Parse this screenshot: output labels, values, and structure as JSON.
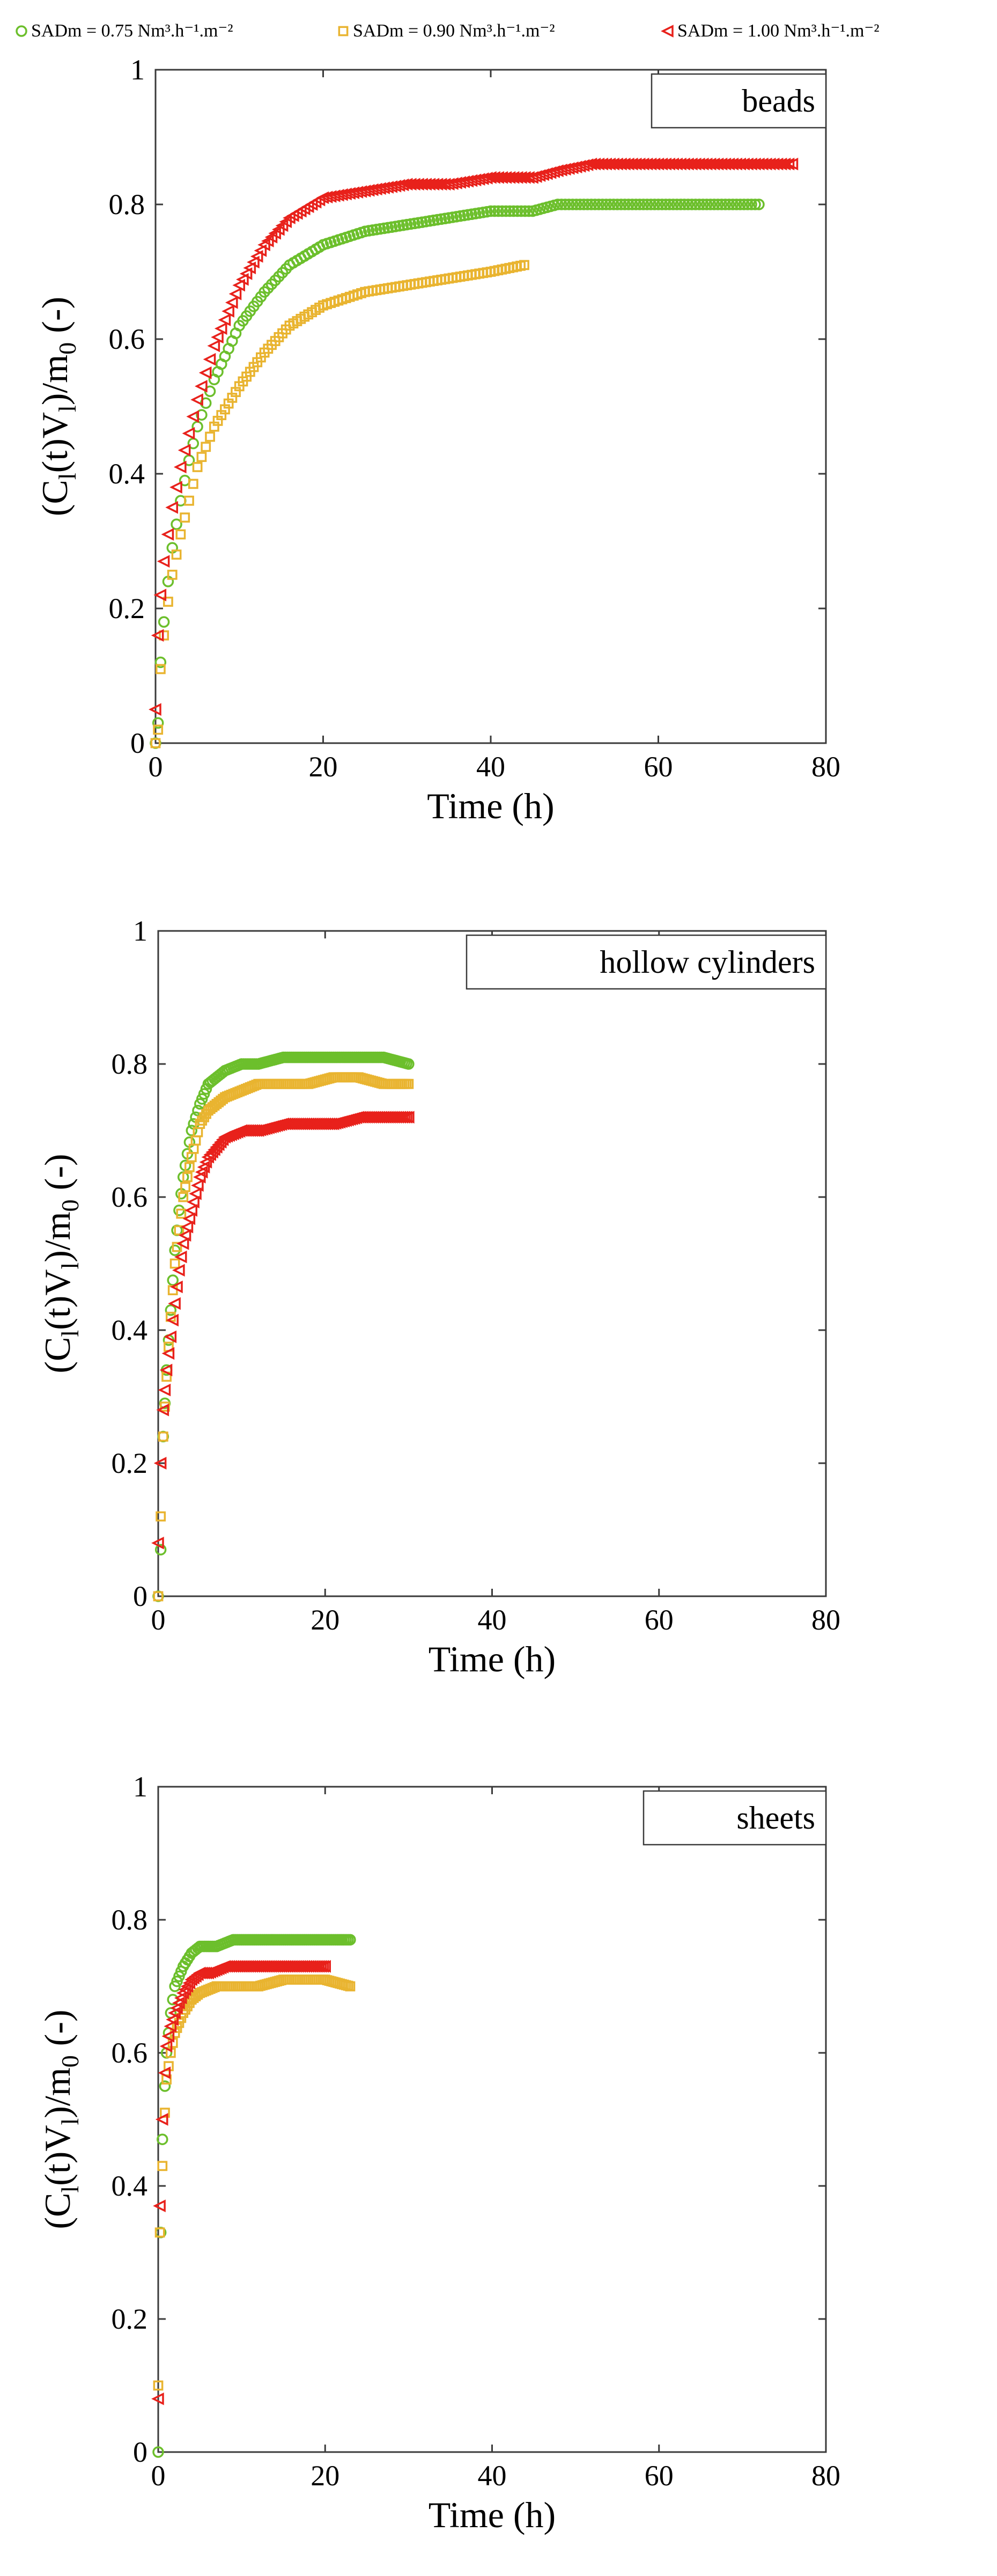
{
  "legend": {
    "entries": [
      {
        "id": "s075",
        "text": "SADm = 0.75 Nm³.h⁻¹.m⁻²",
        "marker": "circle",
        "color": "#6cbf2c"
      },
      {
        "id": "s090",
        "text": "SADm = 0.90 Nm³.h⁻¹.m⁻²",
        "marker": "square",
        "color": "#e9b430"
      },
      {
        "id": "s100",
        "text": "SADm = 1.00 Nm³.h⁻¹.m⁻²",
        "marker": "triangle-left",
        "color": "#e8211b"
      }
    ]
  },
  "chart_data": [
    {
      "type": "scatter",
      "panel_label": "beads",
      "xlabel": "Time (h)",
      "ylabel_parts": [
        "(C",
        "l",
        "(t)V",
        "l",
        ")/m",
        "0",
        " (-)"
      ],
      "xlim": [
        0,
        80
      ],
      "ylim": [
        0,
        1
      ],
      "xticks": [
        "0",
        "20",
        "40",
        "60",
        "80"
      ],
      "yticks": [
        "0",
        "0.2",
        "0.4",
        "0.6",
        "0.8",
        "1"
      ],
      "series": [
        {
          "name": "SADm = 0.75 Nm³.h⁻¹.m⁻²",
          "marker": "circle",
          "color": "#6cbf2c",
          "x": [
            0,
            0.3,
            0.6,
            1,
            1.5,
            2,
            3,
            4,
            5,
            7,
            10,
            13,
            16,
            20,
            25,
            30,
            35,
            40,
            45,
            48,
            52,
            56,
            60,
            64,
            68,
            72
          ],
          "y": [
            0,
            0.03,
            0.12,
            0.18,
            0.24,
            0.29,
            0.36,
            0.42,
            0.47,
            0.54,
            0.62,
            0.67,
            0.71,
            0.74,
            0.76,
            0.77,
            0.78,
            0.79,
            0.79,
            0.8,
            0.8,
            0.8,
            0.8,
            0.8,
            0.8,
            0.8
          ]
        },
        {
          "name": "SADm = 0.90 Nm³.h⁻¹.m⁻²",
          "marker": "square",
          "color": "#e9b430",
          "x": [
            0,
            0.3,
            0.6,
            1,
            1.5,
            2,
            3,
            4,
            5,
            7,
            10,
            13,
            16,
            20,
            25,
            30,
            35,
            40,
            44
          ],
          "y": [
            0,
            0.02,
            0.11,
            0.16,
            0.21,
            0.25,
            0.31,
            0.36,
            0.41,
            0.47,
            0.53,
            0.58,
            0.62,
            0.65,
            0.67,
            0.68,
            0.69,
            0.7,
            0.71
          ]
        },
        {
          "name": "SADm = 1.00 Nm³.h⁻¹.m⁻²",
          "marker": "triangle-left",
          "color": "#e8211b",
          "x": [
            0,
            0.3,
            0.6,
            1,
            1.5,
            2,
            3,
            4,
            5,
            7,
            10,
            13,
            16,
            20,
            25,
            30,
            35,
            40,
            45,
            48,
            52,
            56,
            60,
            64,
            68,
            72,
            76
          ],
          "y": [
            0.05,
            0.16,
            0.22,
            0.27,
            0.31,
            0.35,
            0.41,
            0.46,
            0.51,
            0.59,
            0.68,
            0.74,
            0.78,
            0.81,
            0.82,
            0.83,
            0.83,
            0.84,
            0.84,
            0.85,
            0.86,
            0.86,
            0.86,
            0.86,
            0.86,
            0.86,
            0.86
          ]
        }
      ]
    },
    {
      "type": "scatter",
      "panel_label": "hollow cylinders",
      "xlabel": "Time (h)",
      "ylabel_parts": [
        "(C",
        "l",
        "(t)V",
        "l",
        ")/m",
        "0",
        " (-)"
      ],
      "xlim": [
        0,
        80
      ],
      "ylim": [
        0,
        1
      ],
      "xticks": [
        "0",
        "20",
        "40",
        "60",
        "80"
      ],
      "yticks": [
        "0",
        "0.2",
        "0.4",
        "0.6",
        "0.8",
        "1"
      ],
      "series": [
        {
          "name": "SADm = 0.75 Nm³.h⁻¹.m⁻²",
          "marker": "circle",
          "color": "#6cbf2c",
          "x": [
            0,
            0.3,
            0.6,
            1,
            1.5,
            2,
            2.5,
            3,
            4,
            5,
            6,
            8,
            10,
            12,
            15,
            18,
            21,
            24,
            27,
            30
          ],
          "y": [
            0,
            0.07,
            0.24,
            0.34,
            0.43,
            0.52,
            0.58,
            0.63,
            0.7,
            0.74,
            0.77,
            0.79,
            0.8,
            0.8,
            0.81,
            0.81,
            0.81,
            0.81,
            0.81,
            0.8
          ]
        },
        {
          "name": "SADm = 0.90 Nm³.h⁻¹.m⁻²",
          "marker": "square",
          "color": "#e9b430",
          "x": [
            0,
            0.3,
            0.6,
            1,
            1.5,
            2,
            2.5,
            3,
            4,
            5,
            6,
            8,
            10,
            12,
            15,
            18,
            21,
            24,
            27,
            30
          ],
          "y": [
            0,
            0.12,
            0.24,
            0.33,
            0.42,
            0.5,
            0.55,
            0.6,
            0.66,
            0.71,
            0.73,
            0.75,
            0.76,
            0.77,
            0.77,
            0.77,
            0.78,
            0.78,
            0.77,
            0.77
          ]
        },
        {
          "name": "SADm = 1.00 Nm³.h⁻¹.m⁻²",
          "marker": "triangle-left",
          "color": "#e8211b",
          "x": [
            0,
            0.3,
            0.6,
            1,
            1.5,
            2,
            2.5,
            3,
            4,
            5,
            6,
            8,
            10,
            12,
            15,
            18,
            21,
            24,
            27,
            30
          ],
          "y": [
            0.08,
            0.2,
            0.28,
            0.34,
            0.39,
            0.44,
            0.49,
            0.53,
            0.58,
            0.63,
            0.66,
            0.69,
            0.7,
            0.7,
            0.71,
            0.71,
            0.71,
            0.72,
            0.72,
            0.72
          ]
        }
      ]
    },
    {
      "type": "scatter",
      "panel_label": "sheets",
      "xlabel": "Time (h)",
      "ylabel_parts": [
        "(C",
        "l",
        "(t)V",
        "l",
        ")/m",
        "0",
        " (-)"
      ],
      "xlim": [
        0,
        80
      ],
      "ylim": [
        0,
        1
      ],
      "xticks": [
        "0",
        "20",
        "40",
        "60",
        "80"
      ],
      "yticks": [
        "0",
        "0.2",
        "0.4",
        "0.6",
        "0.8",
        "1"
      ],
      "series": [
        {
          "name": "SADm = 0.75 Nm³.h⁻¹.m⁻²",
          "marker": "circle",
          "color": "#6cbf2c",
          "x": [
            0,
            0.3,
            0.5,
            0.8,
            1,
            1.5,
            2,
            3,
            4,
            5,
            7,
            9,
            12,
            15,
            18,
            20,
            23
          ],
          "y": [
            0,
            0.33,
            0.47,
            0.55,
            0.6,
            0.66,
            0.7,
            0.73,
            0.75,
            0.76,
            0.76,
            0.77,
            0.77,
            0.77,
            0.77,
            0.77,
            0.77
          ]
        },
        {
          "name": "SADm = 0.90 Nm³.h⁻¹.m⁻²",
          "marker": "square",
          "color": "#e9b430",
          "x": [
            0,
            0.2,
            0.5,
            0.8,
            1,
            1.5,
            2,
            3,
            4,
            5,
            7,
            9,
            12,
            15,
            18,
            20,
            23
          ],
          "y": [
            0.1,
            0.33,
            0.43,
            0.51,
            0.56,
            0.6,
            0.63,
            0.66,
            0.68,
            0.69,
            0.7,
            0.7,
            0.7,
            0.71,
            0.71,
            0.71,
            0.7
          ]
        },
        {
          "name": "SADm = 1.00 Nm³.h⁻¹.m⁻²",
          "marker": "triangle-left",
          "color": "#e8211b",
          "x": [
            0,
            0.2,
            0.5,
            0.8,
            1,
            1.5,
            2,
            3,
            4,
            5,
            6,
            8,
            10,
            12,
            14,
            16,
            18,
            20
          ],
          "y": [
            0.08,
            0.37,
            0.5,
            0.57,
            0.61,
            0.64,
            0.66,
            0.69,
            0.71,
            0.72,
            0.72,
            0.73,
            0.73,
            0.73,
            0.73,
            0.73,
            0.73,
            0.73
          ]
        }
      ]
    }
  ]
}
